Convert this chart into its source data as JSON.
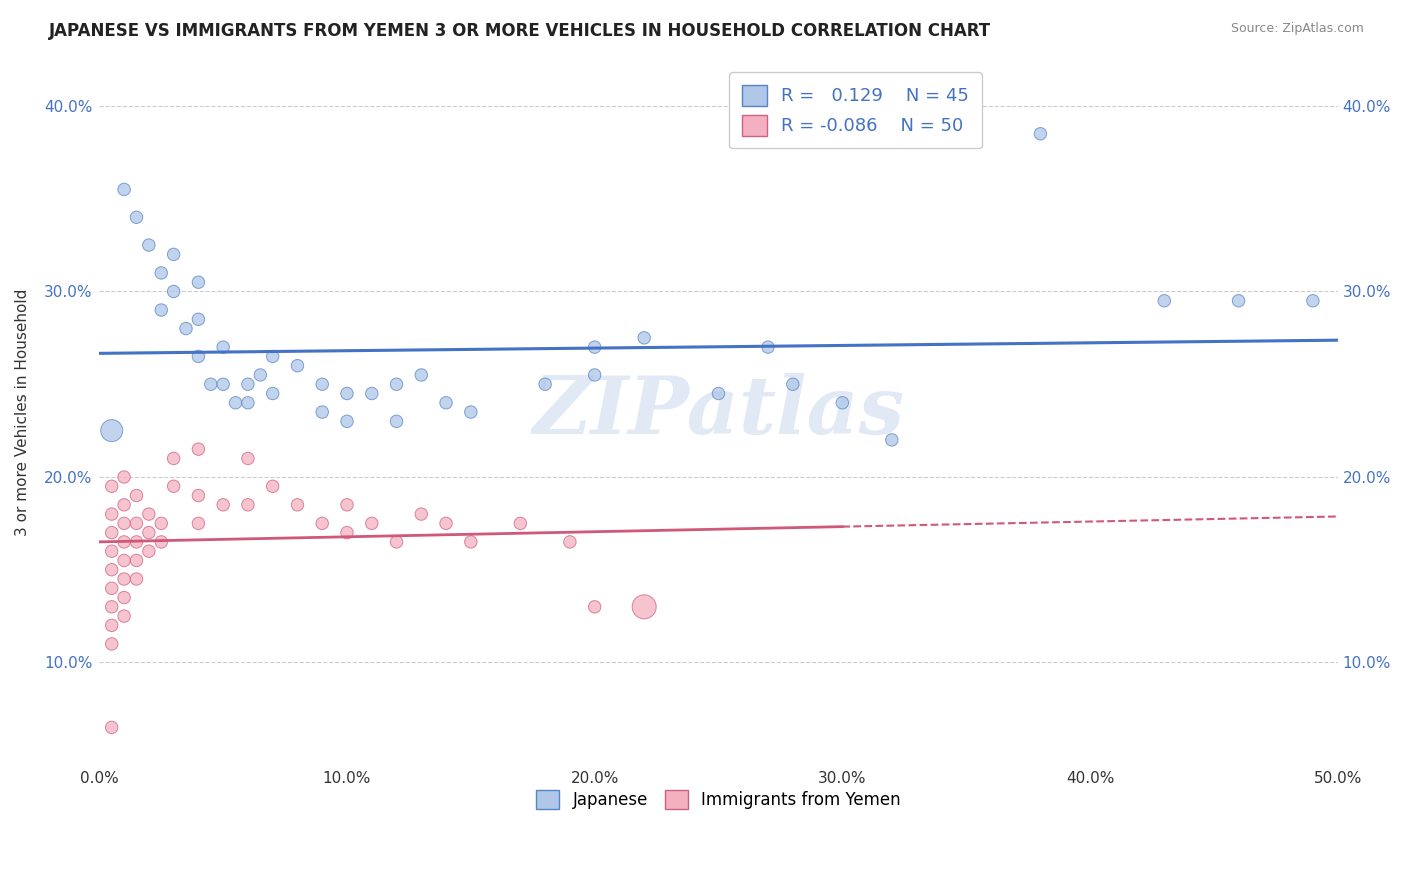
{
  "title": "JAPANESE VS IMMIGRANTS FROM YEMEN 3 OR MORE VEHICLES IN HOUSEHOLD CORRELATION CHART",
  "source": "Source: ZipAtlas.com",
  "ylabel_label": "3 or more Vehicles in Household",
  "xlim": [
    0.0,
    0.5
  ],
  "ylim": [
    0.045,
    0.425
  ],
  "xticks": [
    0.0,
    0.1,
    0.2,
    0.3,
    0.4,
    0.5
  ],
  "yticks": [
    0.1,
    0.2,
    0.3,
    0.4
  ],
  "xtick_labels": [
    "0.0%",
    "10.0%",
    "20.0%",
    "30.0%",
    "40.0%",
    "50.0%"
  ],
  "ytick_labels": [
    "10.0%",
    "20.0%",
    "30.0%",
    "40.0%"
  ],
  "R_japanese": 0.129,
  "N_japanese": 45,
  "R_yemen": -0.086,
  "N_yemen": 50,
  "japanese_color": "#aec6e8",
  "yemen_color": "#f4b0c0",
  "japanese_edge_color": "#5585c5",
  "yemen_edge_color": "#d06080",
  "japanese_line_color": "#4472c4",
  "yemen_line_color": "#d05878",
  "watermark": "ZIPatlas",
  "japanese_points": [
    [
      0.01,
      0.355
    ],
    [
      0.015,
      0.34
    ],
    [
      0.02,
      0.325
    ],
    [
      0.025,
      0.31
    ],
    [
      0.025,
      0.29
    ],
    [
      0.03,
      0.32
    ],
    [
      0.03,
      0.3
    ],
    [
      0.035,
      0.28
    ],
    [
      0.04,
      0.305
    ],
    [
      0.04,
      0.285
    ],
    [
      0.04,
      0.265
    ],
    [
      0.045,
      0.25
    ],
    [
      0.05,
      0.27
    ],
    [
      0.05,
      0.25
    ],
    [
      0.055,
      0.24
    ],
    [
      0.06,
      0.25
    ],
    [
      0.06,
      0.24
    ],
    [
      0.065,
      0.255
    ],
    [
      0.07,
      0.265
    ],
    [
      0.07,
      0.245
    ],
    [
      0.08,
      0.26
    ],
    [
      0.09,
      0.25
    ],
    [
      0.09,
      0.235
    ],
    [
      0.1,
      0.245
    ],
    [
      0.1,
      0.23
    ],
    [
      0.11,
      0.245
    ],
    [
      0.12,
      0.25
    ],
    [
      0.12,
      0.23
    ],
    [
      0.13,
      0.255
    ],
    [
      0.14,
      0.24
    ],
    [
      0.15,
      0.235
    ],
    [
      0.18,
      0.25
    ],
    [
      0.2,
      0.27
    ],
    [
      0.2,
      0.255
    ],
    [
      0.22,
      0.275
    ],
    [
      0.25,
      0.245
    ],
    [
      0.27,
      0.27
    ],
    [
      0.28,
      0.25
    ],
    [
      0.3,
      0.24
    ],
    [
      0.32,
      0.22
    ],
    [
      0.38,
      0.385
    ],
    [
      0.43,
      0.295
    ],
    [
      0.46,
      0.295
    ],
    [
      0.49,
      0.295
    ],
    [
      0.005,
      0.225
    ]
  ],
  "yemen_points": [
    [
      0.005,
      0.195
    ],
    [
      0.005,
      0.18
    ],
    [
      0.005,
      0.17
    ],
    [
      0.005,
      0.16
    ],
    [
      0.005,
      0.15
    ],
    [
      0.005,
      0.14
    ],
    [
      0.005,
      0.13
    ],
    [
      0.005,
      0.12
    ],
    [
      0.005,
      0.11
    ],
    [
      0.005,
      0.065
    ],
    [
      0.01,
      0.2
    ],
    [
      0.01,
      0.185
    ],
    [
      0.01,
      0.175
    ],
    [
      0.01,
      0.165
    ],
    [
      0.01,
      0.155
    ],
    [
      0.01,
      0.145
    ],
    [
      0.01,
      0.135
    ],
    [
      0.01,
      0.125
    ],
    [
      0.015,
      0.19
    ],
    [
      0.015,
      0.175
    ],
    [
      0.015,
      0.165
    ],
    [
      0.015,
      0.155
    ],
    [
      0.015,
      0.145
    ],
    [
      0.02,
      0.18
    ],
    [
      0.02,
      0.17
    ],
    [
      0.02,
      0.16
    ],
    [
      0.025,
      0.175
    ],
    [
      0.025,
      0.165
    ],
    [
      0.03,
      0.21
    ],
    [
      0.03,
      0.195
    ],
    [
      0.04,
      0.215
    ],
    [
      0.04,
      0.19
    ],
    [
      0.04,
      0.175
    ],
    [
      0.05,
      0.185
    ],
    [
      0.06,
      0.21
    ],
    [
      0.06,
      0.185
    ],
    [
      0.07,
      0.195
    ],
    [
      0.08,
      0.185
    ],
    [
      0.09,
      0.175
    ],
    [
      0.1,
      0.185
    ],
    [
      0.1,
      0.17
    ],
    [
      0.11,
      0.175
    ],
    [
      0.12,
      0.165
    ],
    [
      0.13,
      0.18
    ],
    [
      0.14,
      0.175
    ],
    [
      0.15,
      0.165
    ],
    [
      0.17,
      0.175
    ],
    [
      0.19,
      0.165
    ],
    [
      0.2,
      0.13
    ],
    [
      0.22,
      0.13
    ]
  ],
  "japanese_sizes": [
    80,
    80,
    80,
    80,
    80,
    80,
    80,
    80,
    80,
    80,
    80,
    80,
    80,
    80,
    80,
    80,
    80,
    80,
    80,
    80,
    80,
    80,
    80,
    80,
    80,
    80,
    80,
    80,
    80,
    80,
    80,
    80,
    80,
    80,
    80,
    80,
    80,
    80,
    80,
    80,
    80,
    80,
    80,
    80,
    250
  ],
  "yemen_sizes": [
    80,
    80,
    80,
    80,
    80,
    80,
    80,
    80,
    80,
    80,
    80,
    80,
    80,
    80,
    80,
    80,
    80,
    80,
    80,
    80,
    80,
    80,
    80,
    80,
    80,
    80,
    80,
    80,
    80,
    80,
    80,
    80,
    80,
    80,
    80,
    80,
    80,
    80,
    80,
    80,
    80,
    80,
    80,
    80,
    80,
    80,
    80,
    80,
    80,
    300
  ]
}
